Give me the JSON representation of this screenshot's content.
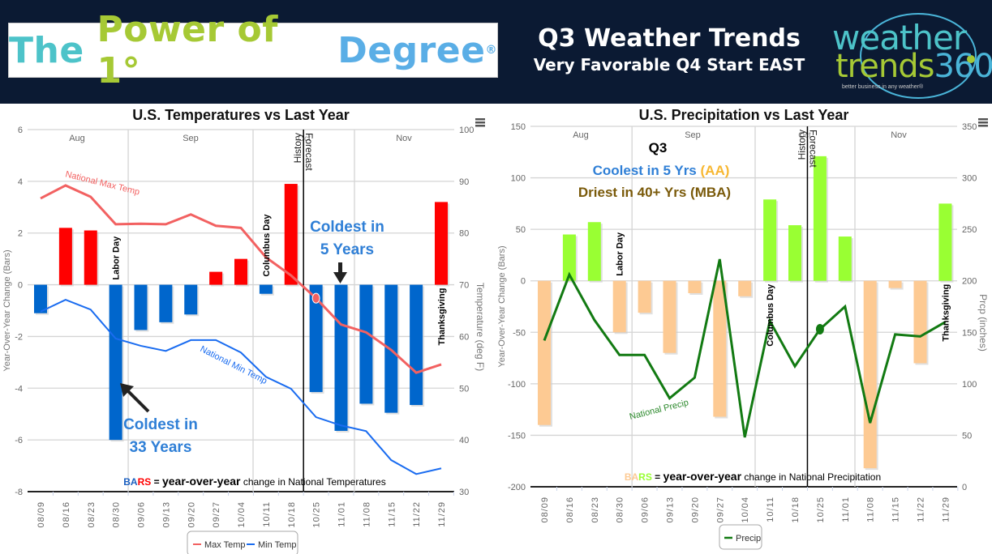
{
  "banner": {
    "logo_words": [
      "The",
      "Power of 1°",
      "Degree"
    ],
    "logo_mark": "®",
    "title": "Q3 Weather Trends",
    "subtitle": "Very Favorable Q4 Start EAST",
    "brand_line1": "weather",
    "brand_line2": "trends",
    "brand_num": "360",
    "brand_tagline": "better business in any weather®",
    "colors": {
      "bg": "#0b1a33",
      "teal": "#4dc3c9",
      "lime": "#a6c935",
      "blue": "#5aaee6"
    }
  },
  "chart_data": [
    {
      "type": "bar",
      "title": "U.S. Temperatures vs Last Year",
      "categories": [
        "08/09",
        "08/16",
        "08/23",
        "08/30",
        "09/06",
        "09/13",
        "09/20",
        "09/27",
        "10/04",
        "10/11",
        "10/18",
        "10/25",
        "11/01",
        "11/08",
        "11/15",
        "11/22",
        "11/29"
      ],
      "months": [
        "Aug",
        "Sep",
        "Oct",
        "Nov"
      ],
      "ylabel": "Year-Over-Year Change (Bars)",
      "y2label": "Temperature (deg F)",
      "ylim": [
        -8,
        6
      ],
      "yticks": [
        -8,
        -6,
        -4,
        -2,
        0,
        2,
        4,
        6
      ],
      "y2lim": [
        30,
        100
      ],
      "y2ticks": [
        30,
        40,
        50,
        60,
        70,
        80,
        90,
        100
      ],
      "grid": true,
      "bars": {
        "name": "YoY Change",
        "values": [
          -1.1,
          2.2,
          2.1,
          -6.0,
          -1.75,
          -1.45,
          -1.15,
          0.5,
          1.0,
          -0.35,
          3.9,
          -4.15,
          -5.65,
          -4.6,
          -4.95,
          -4.65,
          3.2
        ],
        "pos_color": "#ff0000",
        "neg_color": "#0066cc"
      },
      "series": [
        {
          "name": "Max Temp",
          "label": "National Max Temp",
          "color": "#f26161",
          "values": [
            86.7,
            89.2,
            87.0,
            81.7,
            81.8,
            81.7,
            83.6,
            81.4,
            81.0,
            75.3,
            71.8,
            67.4,
            62.3,
            60.8,
            57.4,
            53.0,
            54.6
          ]
        },
        {
          "name": "Min Temp",
          "label": "National Min Temp",
          "color": "#1a6cf0",
          "values": [
            64.8,
            67.1,
            65.2,
            59.6,
            58.2,
            57.2,
            59.3,
            59.3,
            56.9,
            52.2,
            49.9,
            44.4,
            42.8,
            41.7,
            36.1,
            33.4,
            34.5
          ]
        }
      ],
      "marker": {
        "series": "Max Temp",
        "category": "10/25"
      },
      "holidays": [
        {
          "label": "Labor Day",
          "category": "08/30"
        },
        {
          "label": "Columbus Day",
          "category": "10/11"
        },
        {
          "label": "Thanksgiving",
          "category": "11/29"
        }
      ],
      "divider": {
        "left": "History",
        "right": "Forecast",
        "month": "Oct"
      },
      "annotations": [
        {
          "text1": "Coldest in",
          "text2": "33 Years",
          "category": "08/30"
        },
        {
          "text1": "Coldest in",
          "text2": "5 Years",
          "category": "11/01"
        }
      ],
      "footnote": {
        "b1": "BA",
        "b2": "RS",
        "rest1": " = ",
        "rest2": "year-over-year",
        "rest3": " change in National Temperatures"
      },
      "legend": [
        "Max Temp",
        "Min Temp"
      ],
      "legend_position": "bottom"
    },
    {
      "type": "bar",
      "title": "U.S. Precipitation vs Last Year",
      "categories": [
        "08/09",
        "08/16",
        "08/23",
        "08/30",
        "09/06",
        "09/13",
        "09/20",
        "09/27",
        "10/04",
        "10/11",
        "10/18",
        "10/25",
        "11/01",
        "11/08",
        "11/15",
        "11/22",
        "11/29"
      ],
      "months": [
        "Aug",
        "Sep",
        "Oct",
        "Nov"
      ],
      "ylabel": "Year-Over-Year Change (Bars)",
      "y2label": "Prcp (inches)",
      "ylim": [
        -200,
        150
      ],
      "yticks": [
        -200,
        -150,
        -100,
        -50,
        0,
        50,
        100,
        150
      ],
      "y2lim": [
        0,
        350
      ],
      "y2ticks": [
        0,
        50,
        100,
        150,
        200,
        250,
        300,
        350
      ],
      "grid": true,
      "bars": {
        "name": "YoY Change",
        "values": [
          -140,
          45,
          57,
          -50,
          -31,
          -70,
          -12,
          -132,
          -15,
          79,
          54,
          121,
          43,
          -182,
          -7,
          -80,
          75
        ],
        "pos_color": "#99ff33",
        "neg_color": "#fdca93"
      },
      "series": [
        {
          "name": "Precip",
          "label": "National Precip",
          "color": "#127a12",
          "values": [
            142,
            206,
            162,
            128,
            128,
            86,
            106,
            221,
            48,
            161,
            117,
            153,
            175,
            62,
            148,
            146,
            160
          ]
        }
      ],
      "marker": {
        "series": "Precip",
        "category": "10/25"
      },
      "holidays": [
        {
          "label": "Labor Day",
          "category": "08/30"
        },
        {
          "label": "Columbus Day",
          "category": "10/11"
        },
        {
          "label": "Thanksgiving",
          "category": "11/29"
        }
      ],
      "divider": {
        "left": "History",
        "right": "Forecast",
        "month": "Oct"
      },
      "callout": {
        "q": "Q3",
        "line1a": "Coolest in 5 Yrs ",
        "line1b": "(AA)",
        "line2": "Driest in 40+ Yrs (MBA)"
      },
      "footnote": {
        "b1": "BA",
        "b2": "RS",
        "rest1": " = ",
        "rest2": "year-over-year",
        "rest3": " change in National Precipitation"
      },
      "legend": [
        "Precip"
      ],
      "legend_position": "bottom"
    }
  ]
}
